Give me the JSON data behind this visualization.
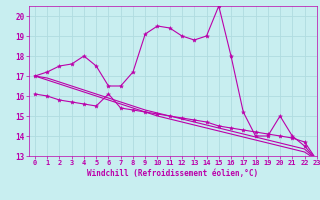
{
  "xlabel": "Windchill (Refroidissement éolien,°C)",
  "bg_color": "#c8eef0",
  "grid_color": "#b0dce0",
  "line_color": "#bb00aa",
  "x_hours": [
    0,
    1,
    2,
    3,
    4,
    5,
    6,
    7,
    8,
    9,
    10,
    11,
    12,
    13,
    14,
    15,
    16,
    17,
    18,
    19,
    20,
    21,
    22,
    23
  ],
  "series1": [
    17.0,
    17.2,
    17.5,
    17.6,
    18.0,
    17.5,
    16.5,
    16.5,
    17.2,
    19.1,
    19.5,
    19.4,
    19.0,
    18.8,
    19.0,
    20.5,
    18.0,
    15.2,
    14.0,
    14.0,
    15.0,
    14.0,
    13.5,
    12.8
  ],
  "series2": [
    16.1,
    16.0,
    15.8,
    15.7,
    15.6,
    15.5,
    16.1,
    15.4,
    15.3,
    15.2,
    15.1,
    15.0,
    14.9,
    14.8,
    14.7,
    14.5,
    14.4,
    14.3,
    14.2,
    14.1,
    14.0,
    13.9,
    13.7,
    12.8
  ],
  "series3": [
    17.0,
    16.8,
    16.6,
    16.4,
    16.2,
    16.0,
    15.8,
    15.6,
    15.4,
    15.2,
    15.0,
    14.85,
    14.7,
    14.55,
    14.4,
    14.25,
    14.1,
    13.95,
    13.8,
    13.65,
    13.5,
    13.35,
    13.2,
    12.8
  ],
  "series4": [
    17.0,
    16.9,
    16.7,
    16.5,
    16.3,
    16.1,
    15.9,
    15.7,
    15.5,
    15.3,
    15.15,
    15.0,
    14.85,
    14.7,
    14.55,
    14.4,
    14.25,
    14.1,
    13.95,
    13.8,
    13.65,
    13.5,
    13.35,
    12.8
  ],
  "ylim": [
    13,
    20.5
  ],
  "xlim": [
    -0.5,
    23
  ],
  "yticks": [
    13,
    14,
    15,
    16,
    17,
    18,
    19,
    20
  ],
  "xticks": [
    0,
    1,
    2,
    3,
    4,
    5,
    6,
    7,
    8,
    9,
    10,
    11,
    12,
    13,
    14,
    15,
    16,
    17,
    18,
    19,
    20,
    21,
    22,
    23
  ],
  "marker_size": 3.0,
  "line_width": 0.8,
  "xlabel_fontsize": 5.5,
  "tick_fontsize": 5.0
}
